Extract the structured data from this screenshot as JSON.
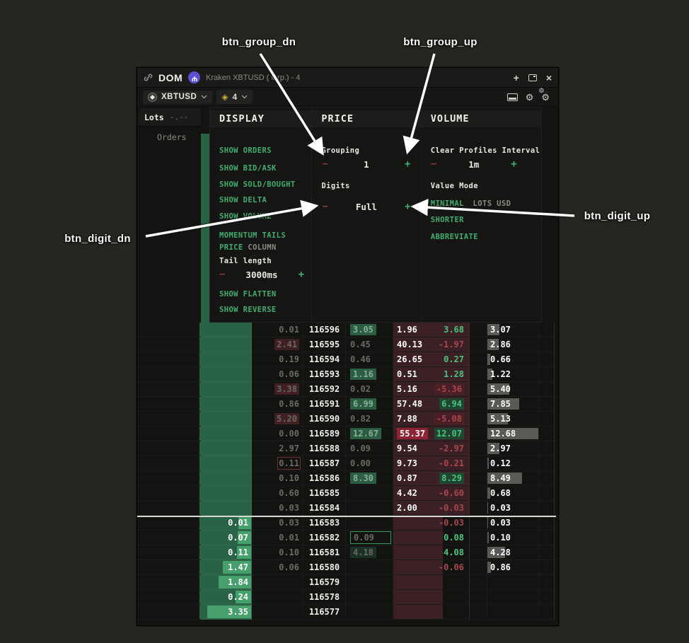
{
  "annotations": {
    "btn_group_dn": "btn_group_dn",
    "btn_group_up": "btn_group_up",
    "btn_digit_dn": "btn_digit_dn",
    "btn_digit_up": "btn_digit_up"
  },
  "titlebar": {
    "app": "DOM",
    "subtitle": "Kraken XBTUSD ( Grp.) - 4",
    "add": "+",
    "close": "×"
  },
  "toolbar": {
    "symbol": "XBTUSD",
    "group_count": "4"
  },
  "ladder_header": {
    "lots_label": "Lots",
    "lots_value": "-.--",
    "orders_label": "Orders"
  },
  "settings": {
    "stepper": {
      "minus": "−",
      "plus": "+"
    },
    "display": {
      "header": "DISPLAY",
      "toggles": [
        "SHOW ORDERS",
        "SHOW BID/ASK",
        "SHOW SOLD/BOUGHT",
        "SHOW DELTA",
        "SHOW VOLUME",
        "MOMENTUM TAILS"
      ],
      "price_column_on": "PRICE",
      "price_column_off": "COLUMN",
      "tail_length_label": "Tail length",
      "tail_length_value": "3000ms",
      "toggles2": [
        "SHOW FLATTEN",
        "SHOW REVERSE"
      ]
    },
    "price": {
      "header": "PRICE",
      "grouping_label": "Grouping",
      "grouping_value": "1",
      "digits_label": "Digits",
      "digits_value": "Full"
    },
    "volume": {
      "header": "VOLUME",
      "clear_label": "Clear Profiles Interval",
      "clear_value": "1m",
      "value_mode_label": "Value Mode",
      "value_mode_selected": "MINIMAL",
      "value_mode_rest": "LOTS USD",
      "options": [
        "SHORTER",
        "ABBREVIATE"
      ]
    },
    "colors": {
      "accent_green": "#3fae6e",
      "accent_red": "#8a3b40"
    }
  },
  "ladder": {
    "rows": [
      {
        "side": "ask",
        "price": "116596",
        "lots": "",
        "lots_bar": 0,
        "s1": "0.01",
        "s1_mark": "",
        "s2": "3.05",
        "s2_mark": "chip",
        "vol": "1.96",
        "vol_hl": false,
        "delta": "3.68",
        "dir": "up",
        "delta_bg": "",
        "total": "3.07",
        "bar": 17
      },
      {
        "side": "ask",
        "price": "116595",
        "lots": "",
        "lots_bar": 0,
        "s1": "2.41",
        "s1_mark": "red",
        "s2": "0.45",
        "s2_mark": "",
        "vol": "40.13",
        "vol_hl": false,
        "delta": "-1.97",
        "dir": "dn",
        "delta_bg": "",
        "total": "2.86",
        "bar": 16
      },
      {
        "side": "ask",
        "price": "116594",
        "lots": "",
        "lots_bar": 0,
        "s1": "0.19",
        "s1_mark": "",
        "s2": "0.46",
        "s2_mark": "",
        "vol": "26.65",
        "vol_hl": false,
        "delta": "0.27",
        "dir": "up",
        "delta_bg": "",
        "total": "0.66",
        "bar": 4
      },
      {
        "side": "ask",
        "price": "116593",
        "lots": "",
        "lots_bar": 0,
        "s1": "0.06",
        "s1_mark": "",
        "s2": "1.16",
        "s2_mark": "chip",
        "vol": "0.51",
        "vol_hl": false,
        "delta": "1.28",
        "dir": "up",
        "delta_bg": "",
        "total": "1.22",
        "bar": 7
      },
      {
        "side": "ask",
        "price": "116592",
        "lots": "",
        "lots_bar": 0,
        "s1": "3.38",
        "s1_mark": "red",
        "s2": "0.02",
        "s2_mark": "",
        "vol": "5.16",
        "vol_hl": false,
        "delta": "-5.36",
        "dir": "dn",
        "delta_bg": "red",
        "total": "5.40",
        "bar": 31
      },
      {
        "side": "ask",
        "price": "116591",
        "lots": "",
        "lots_bar": 0,
        "s1": "0.86",
        "s1_mark": "",
        "s2": "6.99",
        "s2_mark": "chip",
        "vol": "57.48",
        "vol_hl": false,
        "delta": "6.94",
        "dir": "up",
        "delta_bg": "green",
        "total": "7.85",
        "bar": 45
      },
      {
        "side": "ask",
        "price": "116590",
        "lots": "",
        "lots_bar": 0,
        "s1": "5.20",
        "s1_mark": "red",
        "s2": "0.82",
        "s2_mark": "",
        "vol": "7.88",
        "vol_hl": false,
        "delta": "-5.08",
        "dir": "dn",
        "delta_bg": "red",
        "total": "5.13",
        "bar": 29
      },
      {
        "side": "ask",
        "price": "116589",
        "lots": "",
        "lots_bar": 0,
        "s1": "0.00",
        "s1_mark": "",
        "s2": "12.67",
        "s2_mark": "chip",
        "vol": "55.37",
        "vol_hl": true,
        "delta": "12.07",
        "dir": "up",
        "delta_bg": "green",
        "total": "12.68",
        "bar": 72
      },
      {
        "side": "ask",
        "price": "116588",
        "lots": "",
        "lots_bar": 0,
        "s1": "2.97",
        "s1_mark": "",
        "s2": "0.09",
        "s2_mark": "",
        "vol": "9.54",
        "vol_hl": false,
        "delta": "-2.97",
        "dir": "dn",
        "delta_bg": "",
        "total": "2.97",
        "bar": 17
      },
      {
        "side": "ask",
        "price": "116587",
        "lots": "",
        "lots_bar": 0,
        "s1": "0.11",
        "s1_mark": "box",
        "s2": "0.00",
        "s2_mark": "",
        "vol": "9.73",
        "vol_hl": false,
        "delta": "-0.21",
        "dir": "dn",
        "delta_bg": "",
        "total": "0.12",
        "bar": 2
      },
      {
        "side": "ask",
        "price": "116586",
        "lots": "",
        "lots_bar": 0,
        "s1": "0.10",
        "s1_mark": "",
        "s2": "8.30",
        "s2_mark": "chip",
        "vol": "0.87",
        "vol_hl": false,
        "delta": "8.29",
        "dir": "up",
        "delta_bg": "green",
        "total": "8.49",
        "bar": 49
      },
      {
        "side": "ask",
        "price": "116585",
        "lots": "",
        "lots_bar": 0,
        "s1": "0.60",
        "s1_mark": "",
        "s2": "",
        "s2_mark": "",
        "vol": "4.42",
        "vol_hl": false,
        "delta": "-0.60",
        "dir": "dn",
        "delta_bg": "",
        "total": "0.68",
        "bar": 4
      },
      {
        "side": "ask",
        "price": "116584",
        "lots": "",
        "lots_bar": 0,
        "s1": "0.03",
        "s1_mark": "",
        "s2": "",
        "s2_mark": "",
        "vol": "2.00",
        "vol_hl": false,
        "delta": "-0.03",
        "dir": "dn",
        "delta_bg": "",
        "total": "0.03",
        "bar": 1
      },
      {
        "side": "bid",
        "price": "116583",
        "lots": "0.01",
        "lots_bar": 18,
        "s1": "0.03",
        "s1_mark": "",
        "s2": "",
        "s2_mark": "",
        "vol": "",
        "vol_hl": false,
        "delta": "-0.03",
        "dir": "dn",
        "delta_bg": "",
        "total": "0.03",
        "bar": 1
      },
      {
        "side": "bid",
        "price": "116582",
        "lots": "0.07",
        "lots_bar": 19,
        "s1": "0.01",
        "s1_mark": "",
        "s2": "0.09",
        "s2_mark": "box",
        "vol": "",
        "vol_hl": false,
        "delta": "0.08",
        "dir": "up",
        "delta_bg": "",
        "total": "0.10",
        "bar": 2
      },
      {
        "side": "bid",
        "price": "116581",
        "lots": "0.11",
        "lots_bar": 20,
        "s1": "0.10",
        "s1_mark": "",
        "s2": "4.18",
        "s2_mark": "chip-faint",
        "vol": "",
        "vol_hl": false,
        "delta": "4.08",
        "dir": "up",
        "delta_bg": "",
        "total": "4.28",
        "bar": 25
      },
      {
        "side": "bid",
        "price": "116580",
        "lots": "1.47",
        "lots_bar": 40,
        "s1": "0.06",
        "s1_mark": "",
        "s2": "",
        "s2_mark": "",
        "vol": "",
        "vol_hl": false,
        "delta": "-0.06",
        "dir": "dn",
        "delta_bg": "",
        "total": "0.86",
        "bar": 5
      },
      {
        "side": "bid",
        "price": "116579",
        "lots": "1.84",
        "lots_bar": 46,
        "s1": "",
        "s1_mark": "",
        "s2": "",
        "s2_mark": "",
        "vol": "",
        "vol_hl": false,
        "delta": "",
        "dir": "up",
        "delta_bg": "",
        "total": "",
        "bar": 0
      },
      {
        "side": "bid",
        "price": "116578",
        "lots": "0.24",
        "lots_bar": 22,
        "s1": "",
        "s1_mark": "",
        "s2": "",
        "s2_mark": "",
        "vol": "",
        "vol_hl": false,
        "delta": "",
        "dir": "up",
        "delta_bg": "",
        "total": "",
        "bar": 0
      },
      {
        "side": "bid",
        "price": "116577",
        "lots": "3.35",
        "lots_bar": 62,
        "s1": "",
        "s1_mark": "",
        "s2": "",
        "s2_mark": "",
        "vol": "",
        "vol_hl": false,
        "delta": "",
        "dir": "up",
        "delta_bg": "",
        "total": "",
        "bar": 0
      }
    ]
  }
}
